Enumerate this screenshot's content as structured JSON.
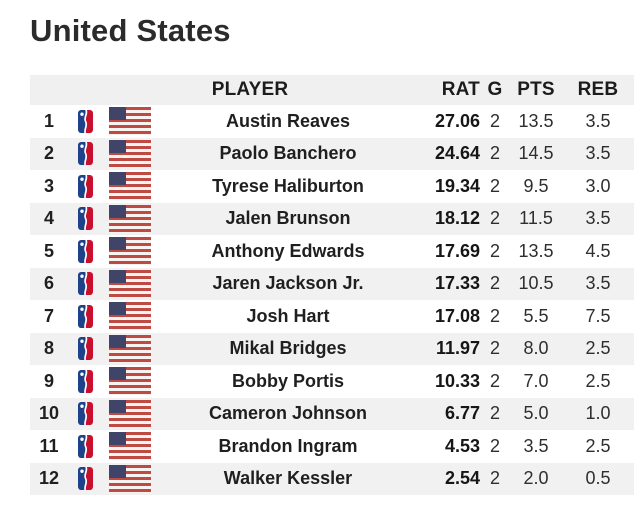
{
  "page": {
    "title": "United States"
  },
  "table": {
    "headers": {
      "player": "PLAYER",
      "rat": "RAT",
      "g": "G",
      "pts": "PTS",
      "reb": "REB"
    },
    "icons": {
      "league": "nba-logo",
      "country": "us-flag"
    },
    "rows": [
      {
        "rank": "1",
        "player": "Austin Reaves",
        "rat": "27.06",
        "g": "2",
        "pts": "13.5",
        "reb": "3.5"
      },
      {
        "rank": "2",
        "player": "Paolo Banchero",
        "rat": "24.64",
        "g": "2",
        "pts": "14.5",
        "reb": "3.5"
      },
      {
        "rank": "3",
        "player": "Tyrese Haliburton",
        "rat": "19.34",
        "g": "2",
        "pts": "9.5",
        "reb": "3.0"
      },
      {
        "rank": "4",
        "player": "Jalen Brunson",
        "rat": "18.12",
        "g": "2",
        "pts": "11.5",
        "reb": "3.5"
      },
      {
        "rank": "5",
        "player": "Anthony Edwards",
        "rat": "17.69",
        "g": "2",
        "pts": "13.5",
        "reb": "4.5"
      },
      {
        "rank": "6",
        "player": "Jaren Jackson Jr.",
        "rat": "17.33",
        "g": "2",
        "pts": "10.5",
        "reb": "3.5"
      },
      {
        "rank": "7",
        "player": "Josh Hart",
        "rat": "17.08",
        "g": "2",
        "pts": "5.5",
        "reb": "7.5"
      },
      {
        "rank": "8",
        "player": "Mikal Bridges",
        "rat": "11.97",
        "g": "2",
        "pts": "8.0",
        "reb": "2.5"
      },
      {
        "rank": "9",
        "player": "Bobby Portis",
        "rat": "10.33",
        "g": "2",
        "pts": "7.0",
        "reb": "2.5"
      },
      {
        "rank": "10",
        "player": "Cameron Johnson",
        "rat": "6.77",
        "g": "2",
        "pts": "5.0",
        "reb": "1.0"
      },
      {
        "rank": "11",
        "player": "Brandon Ingram",
        "rat": "4.53",
        "g": "2",
        "pts": "3.5",
        "reb": "2.5"
      },
      {
        "rank": "12",
        "player": "Walker Kessler",
        "rat": "2.54",
        "g": "2",
        "pts": "2.0",
        "reb": "0.5"
      }
    ]
  },
  "colors": {
    "header_bg": "#f0f0f0",
    "row_alt_bg": "#f1f1f1",
    "title_text": "#2b2b2b",
    "body_text": "#252525",
    "flag_red": "#bf4a43",
    "flag_canton_navy": "#3f4468",
    "nba_blue": "#1d428a",
    "nba_red": "#c8102e"
  }
}
